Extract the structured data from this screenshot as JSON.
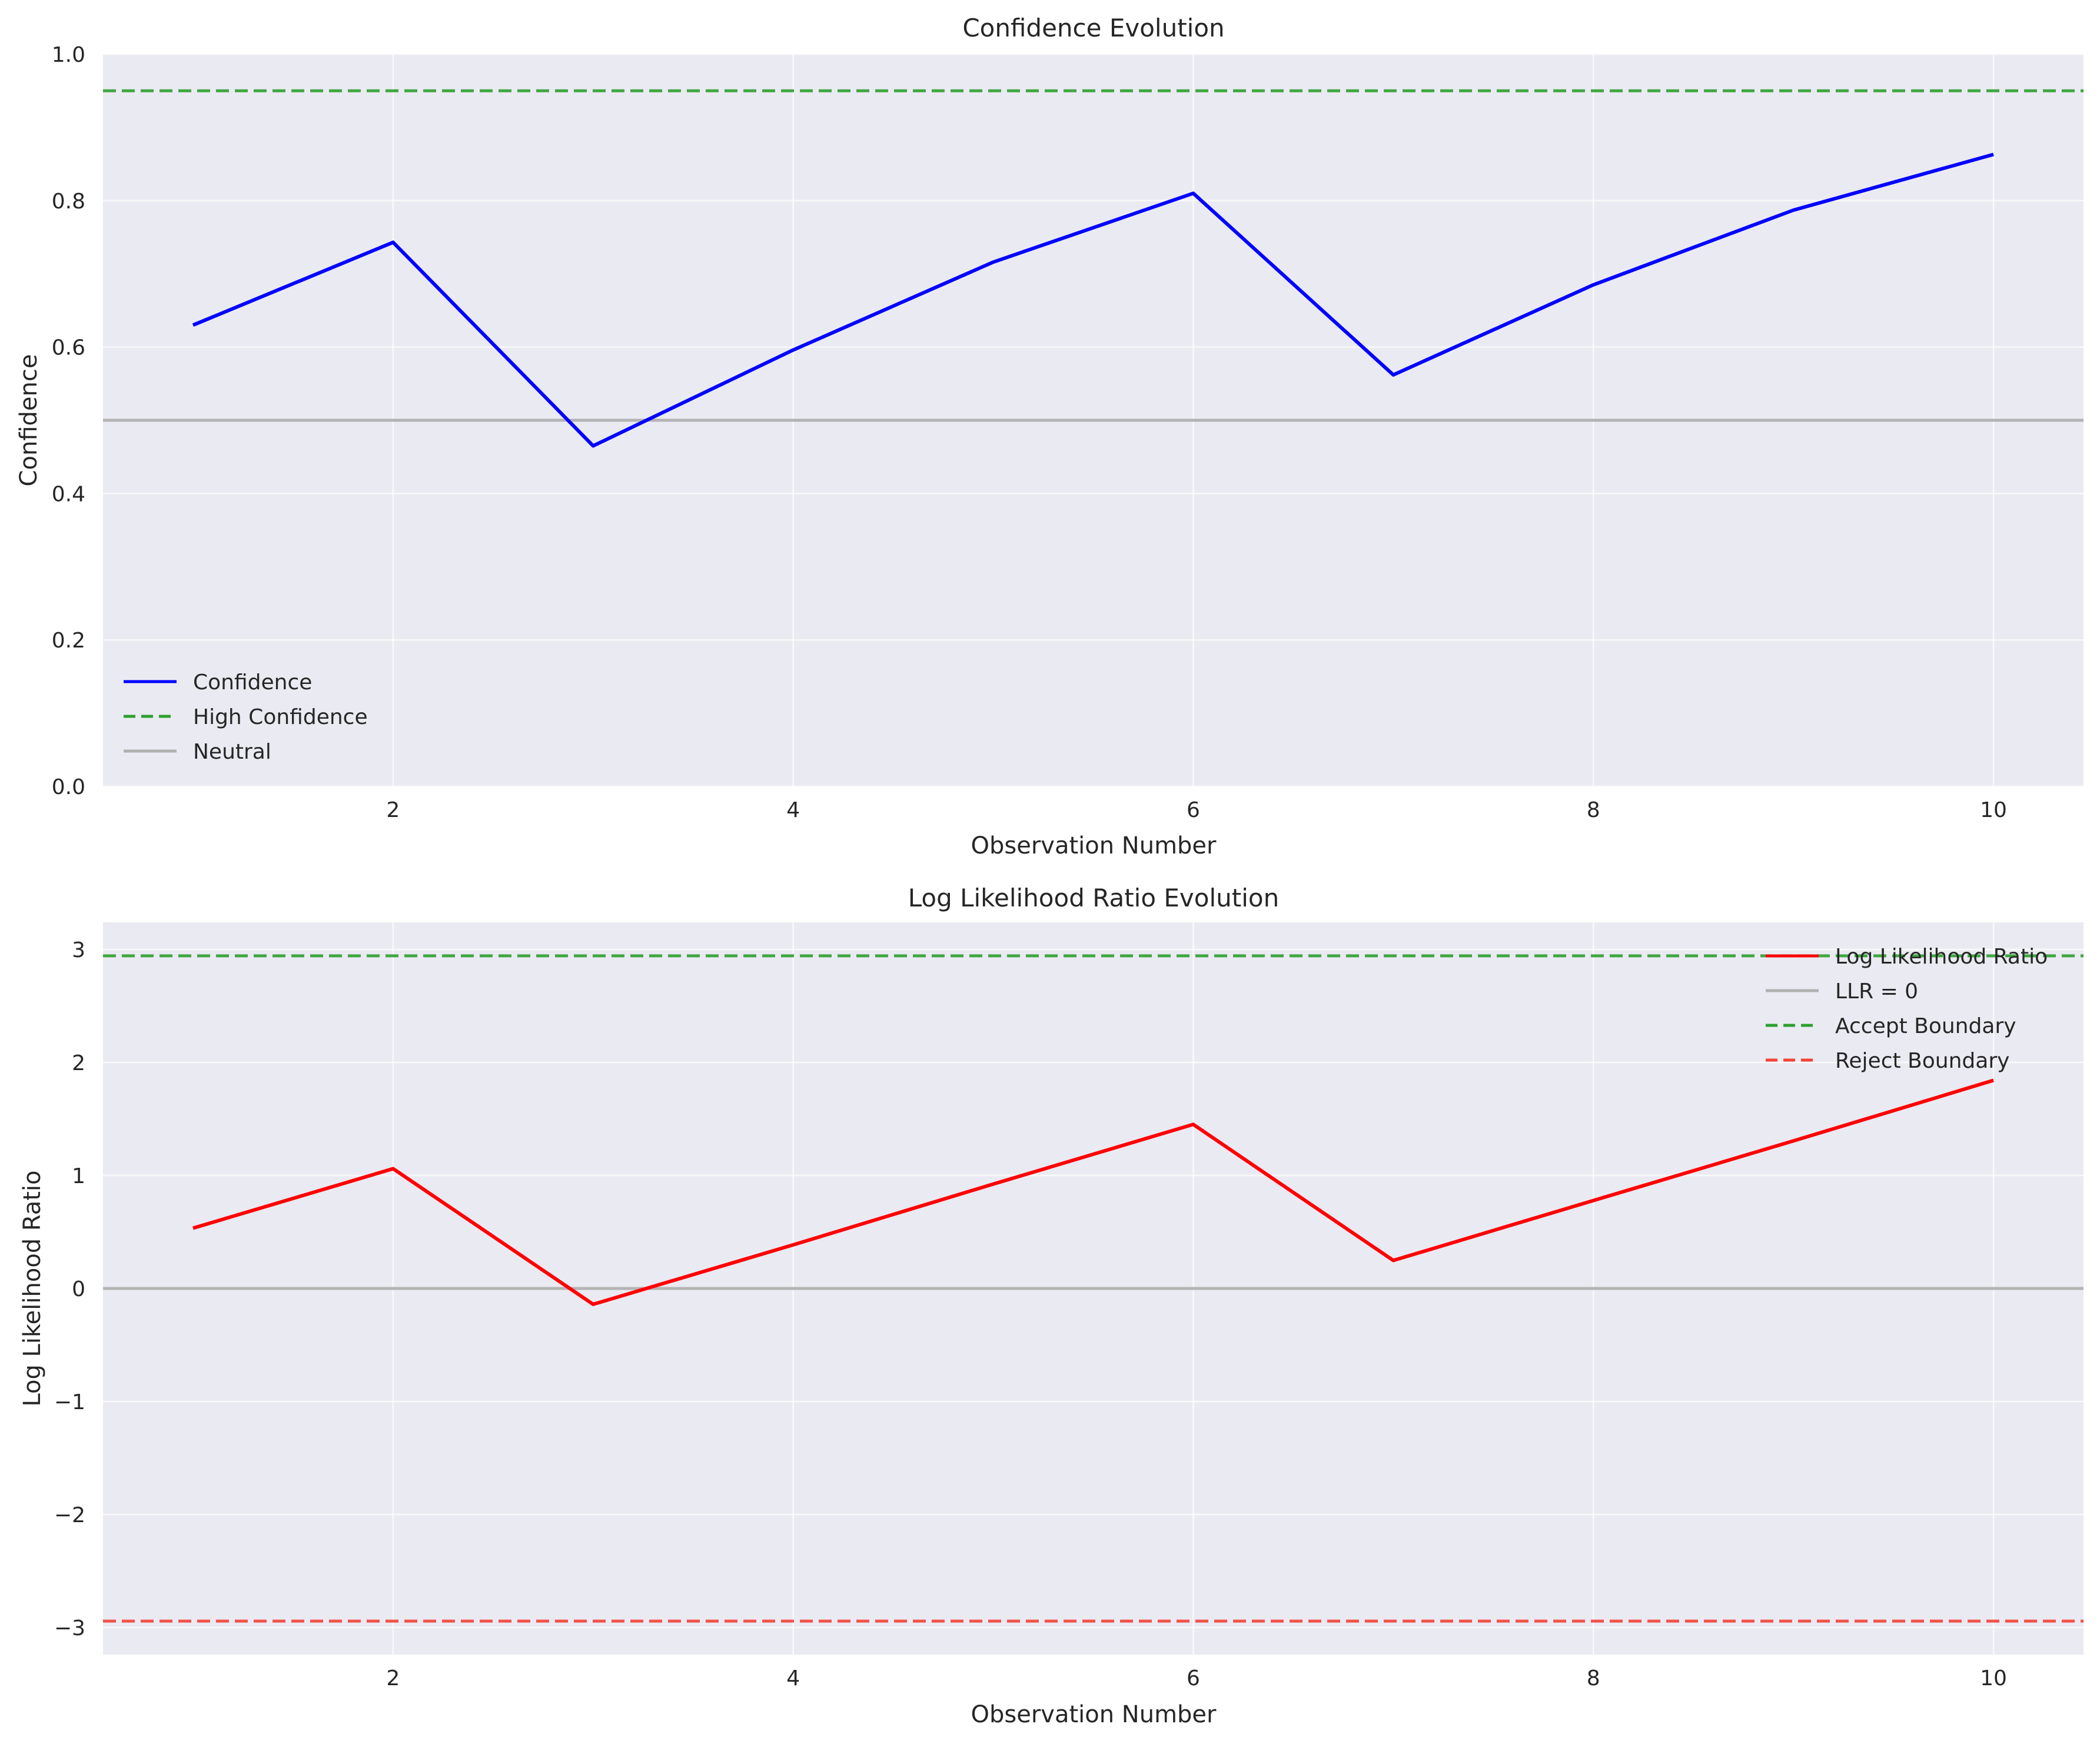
{
  "colors": {
    "plot_background": "#eaeaf2",
    "grid": "#ffffff",
    "confidence": "#0000ff",
    "high_confidence": "#2ca02c",
    "neutral": "#b0b0b0",
    "llr": "#ff0000",
    "accept": "#2ca02c",
    "reject": "#f44336"
  },
  "chart_data": [
    {
      "type": "line",
      "title": "Confidence Evolution",
      "xlabel": "Observation Number",
      "ylabel": "Confidence",
      "xlim": [
        0.55,
        10.45
      ],
      "ylim": [
        0.0,
        1.0
      ],
      "xticks": [
        2,
        4,
        6,
        8,
        10
      ],
      "xtick_labels": [
        "2",
        "4",
        "6",
        "8",
        "10"
      ],
      "yticks": [
        0.0,
        0.2,
        0.4,
        0.6,
        0.8,
        1.0
      ],
      "ytick_labels": [
        "0.0",
        "0.2",
        "0.4",
        "0.6",
        "0.8",
        "1.0"
      ],
      "grid": true,
      "legend_location": "lower left",
      "x": [
        1,
        2,
        3,
        4,
        5,
        6,
        7,
        8,
        9,
        10
      ],
      "series": [
        {
          "name": "Confidence",
          "values": [
            0.63,
            0.743,
            0.465,
            0.596,
            0.716,
            0.81,
            0.562,
            0.685,
            0.787,
            0.863
          ],
          "color": "#0000ff",
          "style": "solid"
        }
      ],
      "reference_lines": [
        {
          "name": "High Confidence",
          "y": 0.95,
          "color": "#2ca02c",
          "style": "dashed"
        },
        {
          "name": "Neutral",
          "y": 0.5,
          "color": "#b0b0b0",
          "style": "solid"
        }
      ],
      "legend": [
        "Confidence",
        "High Confidence",
        "Neutral"
      ]
    },
    {
      "type": "line",
      "title": "Log Likelihood Ratio Evolution",
      "xlabel": "Observation Number",
      "ylabel": "Log Likelihood Ratio",
      "xlim": [
        0.55,
        10.45
      ],
      "ylim": [
        -3.24,
        3.24
      ],
      "xticks": [
        2,
        4,
        6,
        8,
        10
      ],
      "xtick_labels": [
        "2",
        "4",
        "6",
        "8",
        "10"
      ],
      "yticks": [
        -3,
        -2,
        -1,
        0,
        1,
        2,
        3
      ],
      "ytick_labels": [
        "−3",
        "−2",
        "−1",
        "0",
        "1",
        "2",
        "3"
      ],
      "grid": true,
      "legend_location": "upper right",
      "x": [
        1,
        2,
        3,
        4,
        5,
        6,
        7,
        8,
        9,
        10
      ],
      "series": [
        {
          "name": "Log Likelihood Ratio",
          "values": [
            0.534,
            1.06,
            -0.14,
            0.386,
            0.924,
            1.452,
            0.248,
            0.778,
            1.306,
            1.842
          ],
          "color": "#ff0000",
          "style": "solid"
        }
      ],
      "reference_lines": [
        {
          "name": "LLR = 0",
          "y": 0,
          "color": "#b0b0b0",
          "style": "solid"
        },
        {
          "name": "Accept Boundary",
          "y": 2.944,
          "color": "#2ca02c",
          "style": "dashed"
        },
        {
          "name": "Reject Boundary",
          "y": -2.944,
          "color": "#f44336",
          "style": "dashed"
        }
      ],
      "legend": [
        "Log Likelihood Ratio",
        "LLR = 0",
        "Accept Boundary",
        "Reject Boundary"
      ]
    }
  ]
}
